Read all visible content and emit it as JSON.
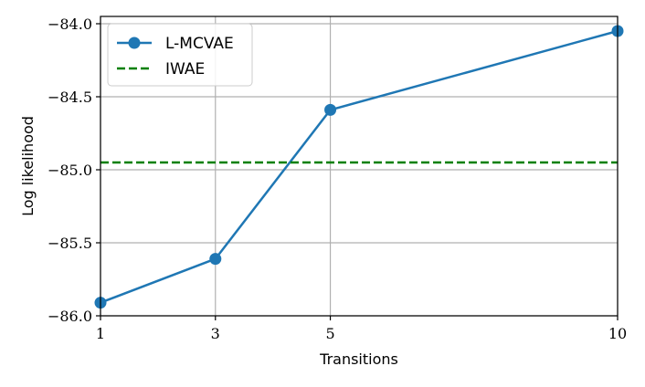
{
  "chart_data": {
    "type": "line",
    "xlabel": "Transitions",
    "ylabel": "Log likelihood",
    "xlim": [
      1,
      10
    ],
    "ylim": [
      -86.0,
      -83.95
    ],
    "x_ticks": [
      1,
      3,
      5,
      10
    ],
    "x_tick_labels": [
      "1",
      "3",
      "5",
      "10"
    ],
    "y_ticks": [
      -86.0,
      -85.5,
      -85.0,
      -84.5,
      -84.0
    ],
    "y_tick_labels": [
      "−86.0",
      "−85.5",
      "−85.0",
      "−84.5",
      "−84.0"
    ],
    "grid": true,
    "legend_position": "top-left",
    "series": [
      {
        "name": "L-MCVAE",
        "style": "solid-with-markers",
        "color": "#1f77b4",
        "x": [
          1,
          3,
          5,
          10
        ],
        "values": [
          -85.91,
          -85.61,
          -84.59,
          -84.05
        ]
      },
      {
        "name": "IWAE",
        "style": "dashed",
        "color": "#008000",
        "x": [
          1,
          10
        ],
        "values": [
          -84.95,
          -84.95
        ]
      }
    ]
  }
}
